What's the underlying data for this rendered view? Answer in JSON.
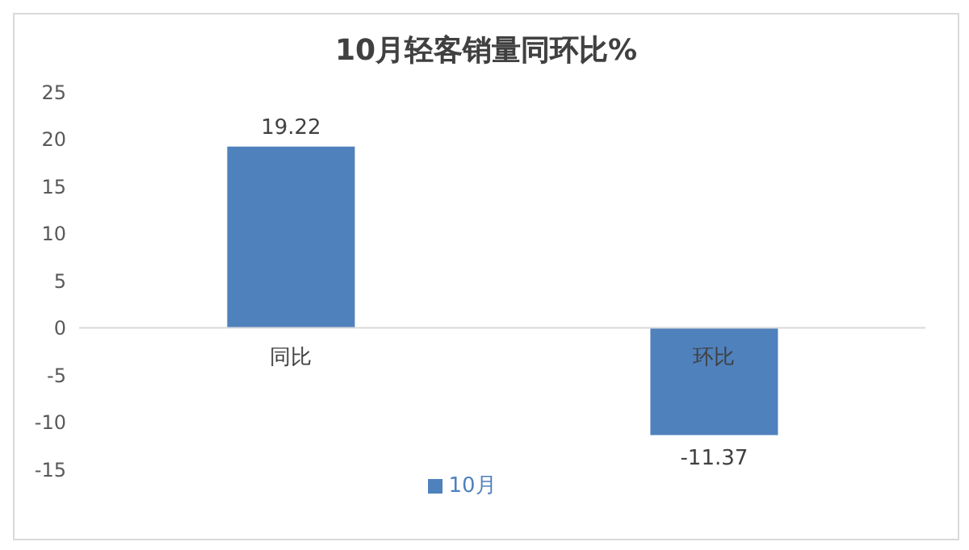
{
  "chart_data": {
    "type": "bar",
    "title": "10月轻客销量同环比%",
    "categories": [
      "同比",
      "环比"
    ],
    "series": [
      {
        "name": "10月",
        "color": "#4f81bd",
        "values": [
          19.22,
          -11.37
        ]
      }
    ],
    "ylim": [
      -15,
      25
    ],
    "yticks": [
      -15,
      -10,
      -5,
      0,
      5,
      10,
      15,
      20,
      25
    ],
    "data_labels": true,
    "legend": "bottom"
  }
}
